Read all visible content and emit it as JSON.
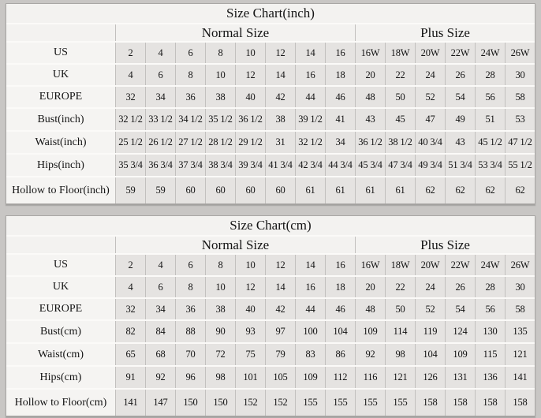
{
  "colors": {
    "page_background": "#c8c6c4",
    "header_cell_background": "#f3f2f0",
    "label_cell_background": "#f5f4f2",
    "data_cell_background": "#e5e3e1",
    "grid_line": "#c2c0be",
    "text": "#141414"
  },
  "tables": [
    {
      "title": "Size Chart(inch)",
      "section_headers": {
        "normal": "Normal Size",
        "plus": "Plus Size",
        "normal_span": 8,
        "plus_span": 6
      },
      "rows": [
        {
          "label": "US",
          "values": [
            "2",
            "4",
            "6",
            "8",
            "10",
            "12",
            "14",
            "16",
            "16W",
            "18W",
            "20W",
            "22W",
            "24W",
            "26W"
          ]
        },
        {
          "label": "UK",
          "values": [
            "4",
            "6",
            "8",
            "10",
            "12",
            "14",
            "16",
            "18",
            "20",
            "22",
            "24",
            "26",
            "28",
            "30"
          ]
        },
        {
          "label": "EUROPE",
          "values": [
            "32",
            "34",
            "36",
            "38",
            "40",
            "42",
            "44",
            "46",
            "48",
            "50",
            "52",
            "54",
            "56",
            "58"
          ]
        },
        {
          "label": "Bust(inch)",
          "values": [
            "32 1/2",
            "33 1/2",
            "34 1/2",
            "35 1/2",
            "36 1/2",
            "38",
            "39 1/2",
            "41",
            "43",
            "45",
            "47",
            "49",
            "51",
            "53"
          ]
        },
        {
          "label": "Waist(inch)",
          "values": [
            "25 1/2",
            "26 1/2",
            "27 1/2",
            "28 1/2",
            "29 1/2",
            "31",
            "32 1/2",
            "34",
            "36 1/2",
            "38 1/2",
            "40 3/4",
            "43",
            "45 1/2",
            "47 1/2"
          ]
        },
        {
          "label": "Hips(inch)",
          "values": [
            "35 3/4",
            "36 3/4",
            "37 3/4",
            "38 3/4",
            "39 3/4",
            "41 3/4",
            "42 3/4",
            "44 3/4",
            "45 3/4",
            "47 3/4",
            "49 3/4",
            "51 3/4",
            "53 3/4",
            "55 1/2"
          ]
        },
        {
          "label": "Hollow to Floor(inch)",
          "values": [
            "59",
            "59",
            "60",
            "60",
            "60",
            "60",
            "61",
            "61",
            "61",
            "61",
            "62",
            "62",
            "62",
            "62"
          ]
        }
      ]
    },
    {
      "title": "Size Chart(cm)",
      "section_headers": {
        "normal": "Normal Size",
        "plus": "Plus Size",
        "normal_span": 8,
        "plus_span": 6
      },
      "rows": [
        {
          "label": "US",
          "values": [
            "2",
            "4",
            "6",
            "8",
            "10",
            "12",
            "14",
            "16",
            "16W",
            "18W",
            "20W",
            "22W",
            "24W",
            "26W"
          ]
        },
        {
          "label": "UK",
          "values": [
            "4",
            "6",
            "8",
            "10",
            "12",
            "14",
            "16",
            "18",
            "20",
            "22",
            "24",
            "26",
            "28",
            "30"
          ]
        },
        {
          "label": "EUROPE",
          "values": [
            "32",
            "34",
            "36",
            "38",
            "40",
            "42",
            "44",
            "46",
            "48",
            "50",
            "52",
            "54",
            "56",
            "58"
          ]
        },
        {
          "label": "Bust(cm)",
          "values": [
            "82",
            "84",
            "88",
            "90",
            "93",
            "97",
            "100",
            "104",
            "109",
            "114",
            "119",
            "124",
            "130",
            "135"
          ]
        },
        {
          "label": "Waist(cm)",
          "values": [
            "65",
            "68",
            "70",
            "72",
            "75",
            "79",
            "83",
            "86",
            "92",
            "98",
            "104",
            "109",
            "115",
            "121"
          ]
        },
        {
          "label": "Hips(cm)",
          "values": [
            "91",
            "92",
            "96",
            "98",
            "101",
            "105",
            "109",
            "112",
            "116",
            "121",
            "126",
            "131",
            "136",
            "141"
          ]
        },
        {
          "label": "Hollow to Floor(cm)",
          "values": [
            "141",
            "147",
            "150",
            "150",
            "152",
            "152",
            "155",
            "155",
            "155",
            "155",
            "158",
            "158",
            "158",
            "158"
          ]
        }
      ]
    }
  ]
}
